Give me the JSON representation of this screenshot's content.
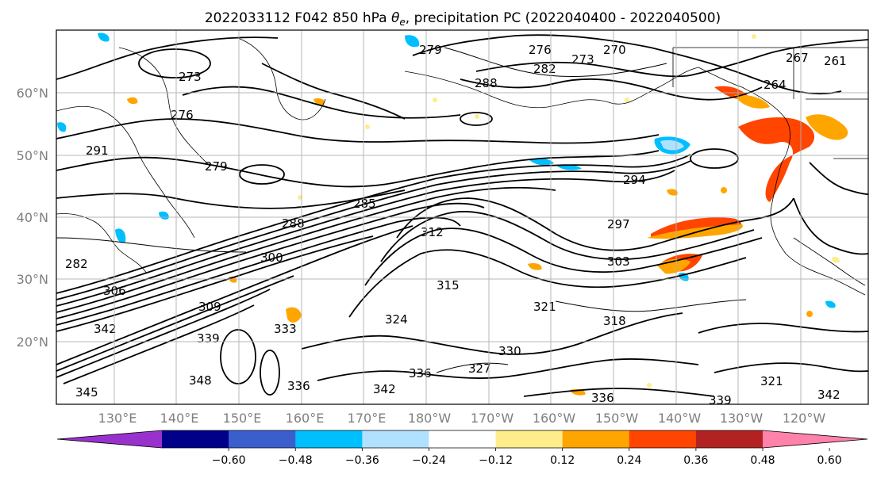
{
  "title": {
    "prefix": "2022033112 F042 850 hPa ",
    "symbol": "θ",
    "subscript": "e",
    "suffix": ", precipitation PC (2022040400 - 2022040500)"
  },
  "lat_labels": [
    "60°N",
    "50°N",
    "40°N",
    "30°N",
    "20°N"
  ],
  "lon_labels": [
    "130°E",
    "140°E",
    "150°E",
    "160°E",
    "170°E",
    "180°W",
    "170°W",
    "160°W",
    "150°W",
    "140°W",
    "130°W",
    "120°W"
  ],
  "colorbar": {
    "tick_labels": [
      "−0.60",
      "−0.48",
      "−0.36",
      "−0.24",
      "−0.12",
      "0.12",
      "0.24",
      "0.36",
      "0.48",
      "0.60"
    ],
    "colors": [
      "#9932cc",
      "#00008b",
      "#3a5fcd",
      "#00bfff",
      "#b0e2ff",
      "#ffffff",
      "#ffec8b",
      "#ffa500",
      "#ff4500",
      "#b22222",
      "#ff82ab"
    ]
  },
  "contour_labels": [
    "279",
    "276",
    "270",
    "273",
    "261",
    "264",
    "267",
    "288",
    "282",
    "273",
    "276",
    "291",
    "279",
    "285",
    "288",
    "294",
    "297",
    "300",
    "303",
    "282",
    "306",
    "309",
    "312",
    "315",
    "318",
    "321",
    "324",
    "327",
    "330",
    "333",
    "336",
    "339",
    "342",
    "345",
    "348",
    "321",
    "336",
    "342",
    "339",
    "336",
    "342"
  ]
}
